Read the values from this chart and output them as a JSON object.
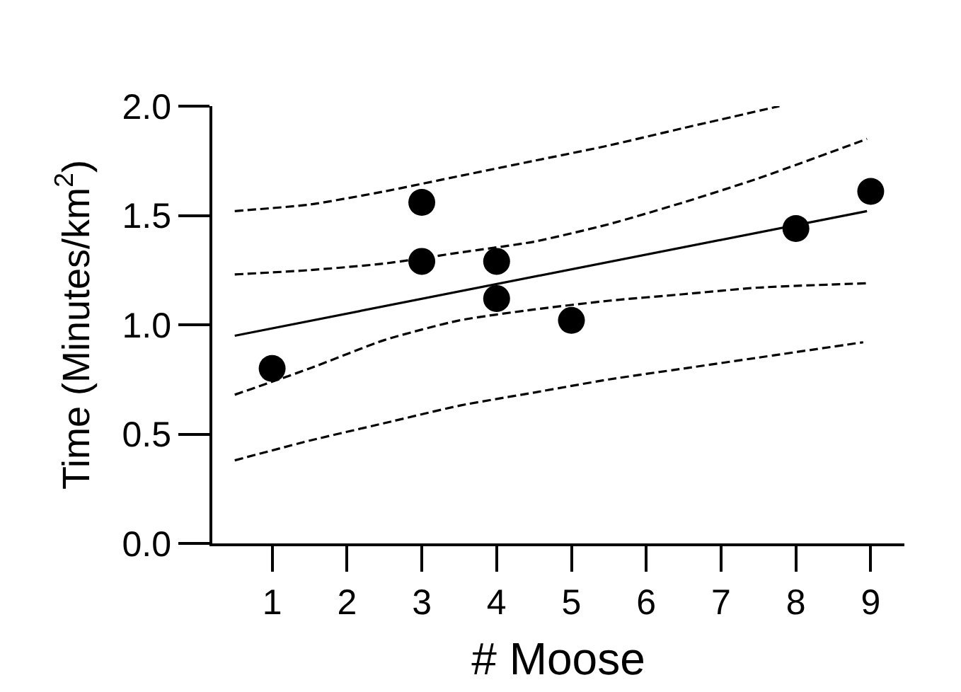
{
  "chart_data": {
    "type": "scatter",
    "xlabel": "# Moose",
    "ylabel": "Time (Minutes/km$^{2}$)",
    "xlim": [
      0.2,
      9.45
    ],
    "xticks": [
      1,
      2,
      3,
      4,
      5,
      6,
      7,
      8,
      9
    ],
    "ylim": [
      0,
      2.0
    ],
    "yticks": [
      {
        "value": 0,
        "label": "0.0"
      },
      {
        "value": 0.5,
        "label": "0.5"
      },
      {
        "value": 1,
        "label": "1.0"
      },
      {
        "value": 1.5,
        "label": "1.5"
      },
      {
        "value": 2,
        "label": "2.0"
      }
    ],
    "series": [
      {
        "type": "line",
        "color": "#000000",
        "line_style": "dashed",
        "x": [
          0.5,
          1.5,
          2.5,
          3.5,
          4.5,
          5.5,
          6.5,
          7.78
        ],
        "values": [
          1.52,
          1.55,
          1.61,
          1.68,
          1.75,
          1.82,
          1.9,
          2.0
        ]
      },
      {
        "type": "line",
        "color": "#000000",
        "line_style": "dashed",
        "x": [
          0.5,
          1.5,
          2.5,
          3.5,
          4.5,
          5.5,
          6.5,
          7.5,
          8.95
        ],
        "values": [
          1.23,
          1.25,
          1.28,
          1.33,
          1.38,
          1.46,
          1.56,
          1.67,
          1.85
        ]
      },
      {
        "type": "line",
        "color": "#000000",
        "line_style": "solid",
        "x": [
          0.5,
          8.95
        ],
        "values": [
          0.95,
          1.52
        ]
      },
      {
        "type": "line",
        "color": "#000000",
        "line_style": "dashed",
        "x": [
          0.5,
          1.5,
          2.5,
          3.5,
          4.5,
          5.5,
          6.5,
          7.5,
          8.95
        ],
        "values": [
          0.68,
          0.8,
          0.93,
          1.02,
          1.07,
          1.11,
          1.14,
          1.17,
          1.19
        ]
      },
      {
        "type": "line",
        "color": "#000000",
        "line_style": "dashed",
        "x": [
          0.5,
          1.5,
          2.5,
          3.5,
          4.5,
          5.5,
          6.5,
          7.5,
          8.9
        ],
        "values": [
          0.38,
          0.47,
          0.55,
          0.63,
          0.69,
          0.75,
          0.8,
          0.85,
          0.92
        ]
      },
      {
        "marker": "circle",
        "color": "#000000",
        "x": [
          1,
          3,
          3,
          4,
          4,
          5,
          8,
          9
        ],
        "values": [
          0.8,
          1.56,
          1.29,
          1.29,
          1.12,
          1.02,
          1.44,
          1.61
        ]
      }
    ]
  }
}
